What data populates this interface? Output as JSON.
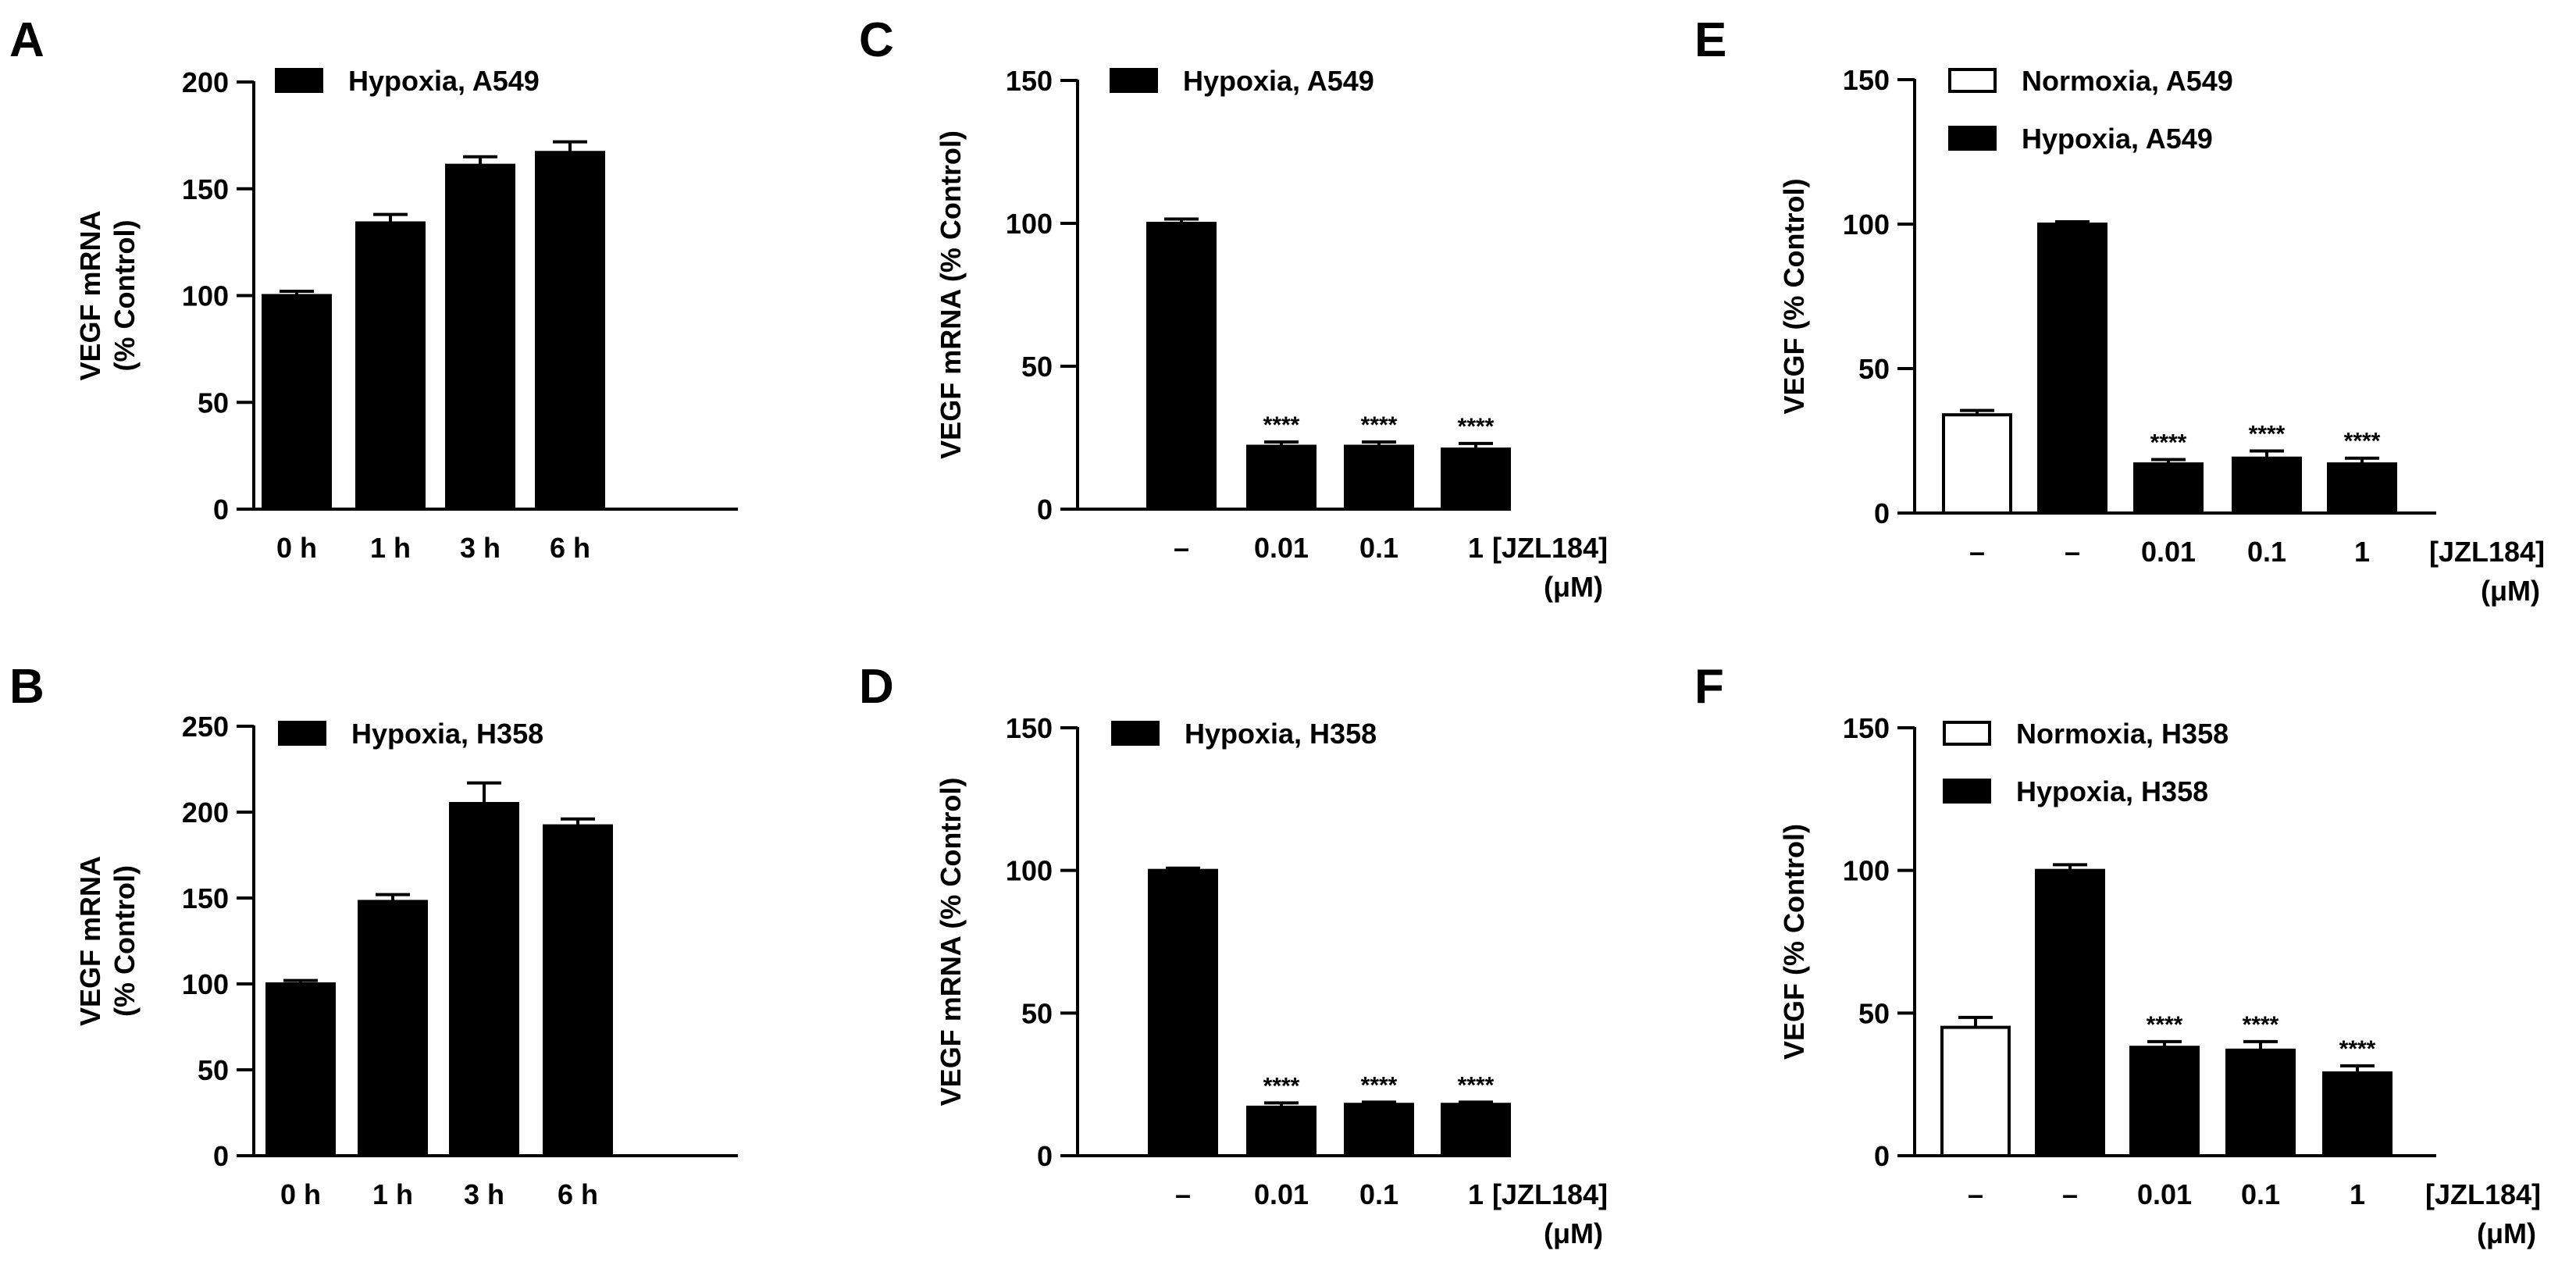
{
  "colors": {
    "filled": "#000000",
    "open": "#ffffff",
    "axis": "#000000"
  },
  "chart_data": [
    {
      "panel": "A",
      "type": "bar",
      "ylabel": "VEGF mRNA",
      "ylabel2": "(% Control)",
      "ylim": [
        0,
        200
      ],
      "yticks": [
        0,
        50,
        100,
        150,
        200
      ],
      "categories": [
        "0 h",
        "1 h",
        "3 h",
        "6 h"
      ],
      "series": [
        {
          "name": "Hypoxia, A549",
          "fill": "filled",
          "values": [
            100,
            134,
            161,
            167
          ],
          "errors": [
            2,
            4,
            4,
            5
          ]
        }
      ],
      "bar_series": [
        0,
        0,
        0,
        0
      ],
      "annotations": [
        "",
        "",
        "",
        ""
      ],
      "xunit": [
        "",
        ""
      ]
    },
    {
      "panel": "B",
      "type": "bar",
      "ylabel": "VEGF mRNA",
      "ylabel2": "(% Control)",
      "ylim": [
        0,
        250
      ],
      "yticks": [
        0,
        50,
        100,
        150,
        200,
        250
      ],
      "categories": [
        "0 h",
        "1 h",
        "3 h",
        "6 h"
      ],
      "series": [
        {
          "name": "Hypoxia, H358",
          "fill": "filled",
          "values": [
            100,
            148,
            205,
            192
          ],
          "errors": [
            2,
            4,
            12,
            4
          ]
        }
      ],
      "bar_series": [
        0,
        0,
        0,
        0
      ],
      "annotations": [
        "",
        "",
        "",
        ""
      ],
      "xunit": [
        "",
        ""
      ]
    },
    {
      "panel": "C",
      "type": "bar",
      "ylabel": "VEGF mRNA (% Control)",
      "ylabel2": "",
      "ylim": [
        0,
        150
      ],
      "yticks": [
        0,
        50,
        100,
        150
      ],
      "categories": [
        "–",
        "0.01",
        "0.1",
        "1"
      ],
      "series": [
        {
          "name": "Hypoxia, A549",
          "fill": "filled",
          "values": [
            100,
            22,
            22,
            21
          ],
          "errors": [
            1.5,
            1.5,
            1.5,
            2
          ]
        }
      ],
      "bar_series": [
        0,
        0,
        0,
        0
      ],
      "annotations": [
        "",
        "****",
        "****",
        "****"
      ],
      "xunit": [
        "[JZL184]",
        "(μM)"
      ]
    },
    {
      "panel": "D",
      "type": "bar",
      "ylabel": "VEGF mRNA (% Control)",
      "ylabel2": "",
      "ylim": [
        0,
        150
      ],
      "yticks": [
        0,
        50,
        100,
        150
      ],
      "categories": [
        "–",
        "0.01",
        "0.1",
        "1"
      ],
      "series": [
        {
          "name": "Hypoxia, H358",
          "fill": "filled",
          "values": [
            100,
            17,
            18,
            18
          ],
          "errors": [
            0.8,
            1.5,
            0.8,
            0.8
          ]
        }
      ],
      "bar_series": [
        0,
        0,
        0,
        0
      ],
      "annotations": [
        "",
        "****",
        "****",
        "****"
      ],
      "xunit": [
        "[JZL184]",
        "(μM)"
      ]
    },
    {
      "panel": "E",
      "type": "bar",
      "ylabel": "VEGF (% Control)",
      "ylabel2": "",
      "ylim": [
        0,
        150
      ],
      "yticks": [
        0,
        50,
        100,
        150
      ],
      "categories": [
        "–",
        "–",
        "0.01",
        "0.1",
        "1"
      ],
      "series": [
        {
          "name": "Normoxia, A549",
          "fill": "open",
          "values": [
            34,
            null,
            null,
            null,
            null
          ],
          "errors": [
            1.5,
            null,
            null,
            null,
            null
          ]
        },
        {
          "name": "Hypoxia, A549",
          "fill": "filled",
          "values": [
            null,
            100,
            17,
            19,
            17
          ],
          "errors": [
            null,
            0.8,
            1.5,
            2.5,
            2
          ]
        }
      ],
      "bar_series": [
        0,
        1,
        1,
        1,
        1
      ],
      "annotations": [
        "",
        "",
        "****",
        "****",
        "****"
      ],
      "xunit": [
        "[JZL184]",
        "(μM)"
      ]
    },
    {
      "panel": "F",
      "type": "bar",
      "ylabel": "VEGF (% Control)",
      "ylabel2": "",
      "ylim": [
        0,
        150
      ],
      "yticks": [
        0,
        50,
        100,
        150
      ],
      "categories": [
        "–",
        "–",
        "0.01",
        "0.1",
        "1"
      ],
      "series": [
        {
          "name": "Normoxia, H358",
          "fill": "open",
          "values": [
            45,
            null,
            null,
            null,
            null
          ],
          "errors": [
            3.5,
            null,
            null,
            null,
            null
          ]
        },
        {
          "name": "Hypoxia, H358",
          "fill": "filled",
          "values": [
            null,
            100,
            38,
            37,
            29
          ],
          "errors": [
            null,
            2,
            2,
            3,
            2.5
          ]
        }
      ],
      "bar_series": [
        0,
        1,
        1,
        1,
        1
      ],
      "annotations": [
        "",
        "",
        "****",
        "****",
        "****"
      ],
      "xunit": [
        "[JZL184]",
        "(μM)"
      ]
    }
  ]
}
